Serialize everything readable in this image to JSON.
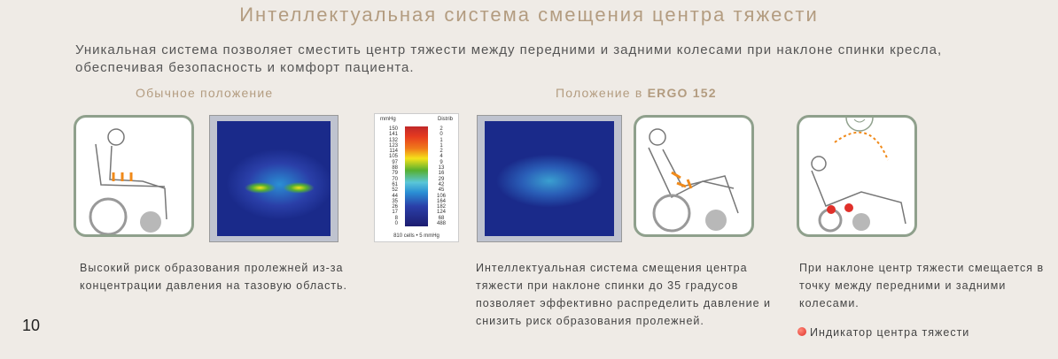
{
  "title": "Интеллектуальная система смещения центра тяжести",
  "intro": "Уникальная система позволяет сместить центр тяжести между передними и задними колесами при наклоне спинки кресла, обеспечивая безопасность и комфорт пациента.",
  "labels": {
    "normal": "Обычное положение",
    "ergo_prefix": "Положение в",
    "ergo_model": "ERGO 152"
  },
  "legend": {
    "left_header": "mmHg",
    "right_header": "Distrib",
    "mmhg": [
      "150",
      "141",
      "132",
      "123",
      "114",
      "105",
      "97",
      "88",
      "79",
      "70",
      "61",
      "52",
      "44",
      "35",
      "26",
      "17",
      "8",
      "0"
    ],
    "distrib": [
      "2",
      "0",
      "1",
      "1",
      "2",
      "4",
      "9",
      "13",
      "16",
      "29",
      "42",
      "45",
      "106",
      "164",
      "182",
      "124",
      "68",
      "488"
    ],
    "footer": "810 cells • 5 mmHg"
  },
  "descriptions": {
    "normal": "Высокий риск образования пролежней из-за концентрации давления на тазовую область.",
    "ergo": "Интеллектуальная система смещения центра тяжести при наклоне спинки до 35 градусов позволяет эффективно распределить давление и снизить риск образования пролежней.",
    "shift": "При наклоне центр тяжести смещается в точку между передними и задними колесами.",
    "indicator": "Индикатор центра тяжести"
  },
  "colors": {
    "accent": "#b39c80",
    "card_border": "#8fa08c",
    "indicator": "#e0302a"
  },
  "page_number": "10"
}
